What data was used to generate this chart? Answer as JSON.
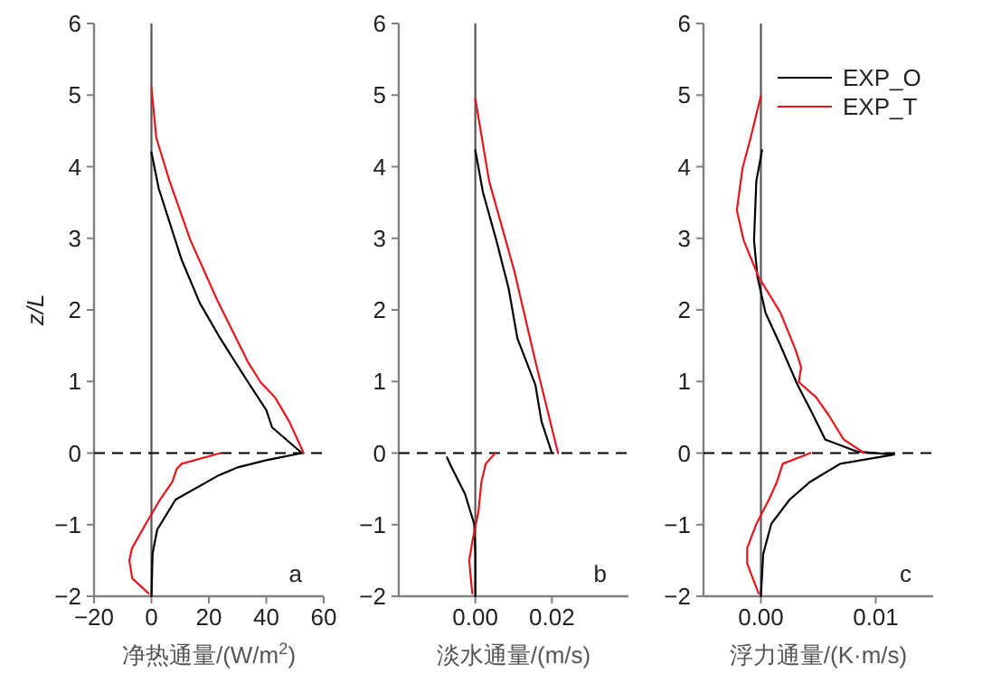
{
  "chart_data": [
    {
      "type": "line",
      "xlabel": "净热通量/(W/m$^{2}$)",
      "ylabel": "z/L",
      "xlim": [
        -20,
        60
      ],
      "xticks": [
        -20,
        0,
        20,
        40,
        60
      ],
      "ylim": [
        -2,
        6
      ],
      "yticks": [
        -2,
        -1,
        0,
        1,
        2,
        3,
        4,
        5,
        6
      ],
      "legend": false,
      "grid": false,
      "series": [
        {
          "color": "#000000",
          "x": [
            0,
            2.5,
            7.3,
            10.5,
            16.8,
            24,
            33.5,
            40,
            42,
            52.4,
            40,
            30,
            23,
            8.4,
            2,
            0.4,
            0
          ],
          "values": [
            4.2,
            3.7,
            3.1,
            2.7,
            2.1,
            1.6,
            1.0,
            0.6,
            0.36,
            0,
            -0.1,
            -0.2,
            -0.32,
            -0.65,
            -1.07,
            -1.4,
            -2
          ]
        },
        {
          "color": "#e8141c",
          "x": [
            0,
            1.7,
            6.3,
            13.6,
            23,
            33.5,
            38,
            43,
            48,
            53,
            null,
            24,
            10.5,
            8.8,
            7.3,
            3,
            -2,
            -6.8,
            -7.7,
            -6.7,
            -1
          ],
          "values": [
            5.1,
            4.4,
            3.8,
            2.97,
            2.13,
            1.28,
            0.99,
            0.78,
            0.44,
            0,
            null,
            0,
            -0.15,
            -0.22,
            -0.4,
            -0.65,
            -0.99,
            -1.33,
            -1.5,
            -1.75,
            -1.96
          ]
        }
      ],
      "ref_lines": [
        {
          "axis": "x",
          "value": 0,
          "color": "#555555",
          "line_style": "solid"
        },
        {
          "axis": "y",
          "value": 0,
          "color": "#000000",
          "line_style": "dashed"
        }
      ],
      "annotations": [
        "a"
      ]
    },
    {
      "type": "line",
      "xlabel": "淡水通量/(m/s)",
      "xlim": [
        -0.02,
        0.04
      ],
      "xticks": [
        {
          "value": 0,
          "label": "0.00"
        },
        {
          "value": 0.02,
          "label": "0.02"
        }
      ],
      "ylim": [
        -2,
        6
      ],
      "yticks": [
        -2,
        -1,
        0,
        1,
        2,
        3,
        4,
        5,
        6
      ],
      "legend": false,
      "grid": false,
      "series": [
        {
          "color": "#000000",
          "x": [
            0,
            0.002,
            0.0055,
            0.0087,
            0.011,
            0.0157,
            0.0173,
            0.02,
            null,
            -0.0074,
            -0.0063,
            -0.0027,
            -0.0003,
            0,
            0
          ],
          "values": [
            4.23,
            3.64,
            2.97,
            2.3,
            1.6,
            0.95,
            0.44,
            0,
            null,
            -0.06,
            -0.19,
            -0.57,
            -0.99,
            -1.41,
            -2
          ]
        },
        {
          "color": "#e8141c",
          "x": [
            0,
            0.0036,
            0.0102,
            0.0157,
            0.0216,
            null,
            0.0052,
            0.0027,
            0.0016,
            0.0008,
            -0.0008,
            -0.0016,
            -0.0008
          ],
          "values": [
            4.95,
            3.8,
            2.54,
            1.28,
            0,
            null,
            0,
            -0.15,
            -0.4,
            -0.82,
            -1.24,
            -1.5,
            -1.96
          ]
        }
      ],
      "ref_lines": [
        {
          "axis": "x",
          "value": 0,
          "color": "#555555",
          "line_style": "solid"
        },
        {
          "axis": "y",
          "value": 0,
          "color": "#000000",
          "line_style": "dashed"
        }
      ],
      "annotations": [
        "b"
      ]
    },
    {
      "type": "line",
      "xlabel": "浮力通量/(K·m/s)",
      "xlim": [
        -0.005,
        0.015
      ],
      "xticks": [
        {
          "value": 0,
          "label": "0.00"
        },
        {
          "value": 0.01,
          "label": "0.01"
        }
      ],
      "ylim": [
        -2,
        6
      ],
      "yticks": [
        -2,
        -1,
        0,
        1,
        2,
        3,
        4,
        5,
        6
      ],
      "legend": "top right",
      "grid": false,
      "series": [
        {
          "name": "EXP_O",
          "color": "#000000",
          "x": [
            0.0001,
            -0.0004,
            -0.0006,
            -0.0003,
            0.0004,
            0.0016,
            0.0032,
            0.0043,
            0.0056,
            0.0084,
            0.0116,
            0.0069,
            0.0043,
            0.0025,
            0.0009,
            0.0002,
            0
          ],
          "values": [
            4.23,
            3.8,
            2.97,
            2.46,
            1.96,
            1.54,
            0.95,
            0.61,
            0.19,
            0.02,
            -0.02,
            -0.15,
            -0.4,
            -0.65,
            -0.99,
            -1.41,
            -2
          ]
        },
        {
          "name": "EXP_T",
          "color": "#e8141c",
          "x": [
            0,
            -0.0009,
            -0.0016,
            -0.0021,
            -0.0015,
            -0.0002,
            0.0017,
            0.003,
            0.0035,
            0.0033,
            0.0048,
            0.0059,
            0.0072,
            0.009,
            null,
            0.0043,
            0.0019,
            0.0014,
            0.0007,
            -0.0004,
            -0.0012,
            -0.0012,
            -0.0002
          ],
          "values": [
            4.99,
            4.4,
            3.98,
            3.39,
            2.97,
            2.46,
            1.96,
            1.45,
            1.2,
            0.99,
            0.78,
            0.53,
            0.19,
            0,
            null,
            0,
            -0.15,
            -0.4,
            -0.65,
            -0.99,
            -1.33,
            -1.54,
            -1.96
          ]
        }
      ],
      "ref_lines": [
        {
          "axis": "x",
          "value": 0,
          "color": "#555555",
          "line_style": "solid"
        },
        {
          "axis": "y",
          "value": 0,
          "color": "#000000",
          "line_style": "dashed"
        }
      ],
      "annotations": [
        "c"
      ]
    }
  ]
}
